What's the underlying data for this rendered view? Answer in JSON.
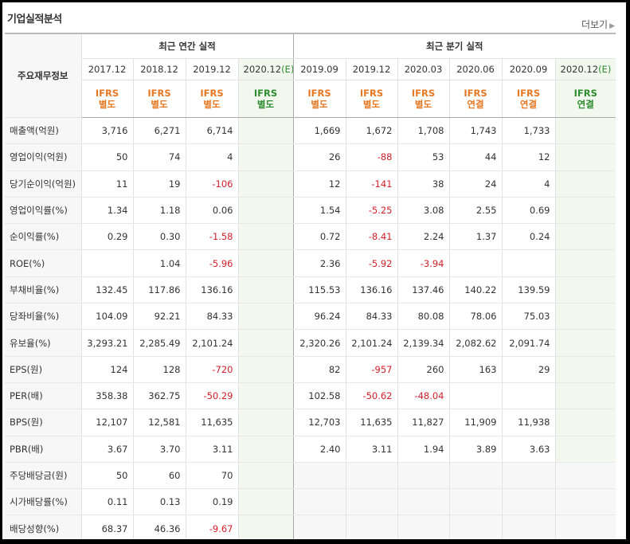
{
  "section_title": "기업실적분석",
  "more_link": "더보기",
  "header": {
    "label": "주요재무정보",
    "annual_group": "최근 연간 실적",
    "quarter_group": "최근 분기 실적",
    "annual_years": [
      "2017.12",
      "2018.12",
      "2019.12",
      "2020.12"
    ],
    "annual_estimate_mark": "(E)",
    "quarter_years": [
      "2019.09",
      "2019.12",
      "2020.03",
      "2020.06",
      "2020.09",
      "2020.12"
    ],
    "quarter_estimate_mark": "(E)",
    "annual_basis": [
      [
        "IFRS",
        "별도"
      ],
      [
        "IFRS",
        "별도"
      ],
      [
        "IFRS",
        "별도"
      ],
      [
        "IFRS",
        "별도"
      ]
    ],
    "quarter_basis": [
      [
        "IFRS",
        "별도"
      ],
      [
        "IFRS",
        "별도"
      ],
      [
        "IFRS",
        "별도"
      ],
      [
        "IFRS",
        "연결"
      ],
      [
        "IFRS",
        "연결"
      ],
      [
        "IFRS",
        "연결"
      ]
    ]
  },
  "rows": [
    {
      "label": "매출액(억원)",
      "annual": [
        "3,716",
        "6,271",
        "6,714",
        ""
      ],
      "quarter": [
        "1,669",
        "1,672",
        "1,708",
        "1,743",
        "1,733",
        ""
      ]
    },
    {
      "label": "영업이익(억원)",
      "annual": [
        "50",
        "74",
        "4",
        ""
      ],
      "quarter": [
        "26",
        "-88",
        "53",
        "44",
        "12",
        ""
      ]
    },
    {
      "label": "당기순이익(억원)",
      "annual": [
        "11",
        "19",
        "-106",
        ""
      ],
      "quarter": [
        "12",
        "-141",
        "38",
        "24",
        "4",
        ""
      ]
    },
    {
      "label": "영업이익률(%)",
      "annual": [
        "1.34",
        "1.18",
        "0.06",
        ""
      ],
      "quarter": [
        "1.54",
        "-5.25",
        "3.08",
        "2.55",
        "0.69",
        ""
      ]
    },
    {
      "label": "순이익률(%)",
      "annual": [
        "0.29",
        "0.30",
        "-1.58",
        ""
      ],
      "quarter": [
        "0.72",
        "-8.41",
        "2.24",
        "1.37",
        "0.24",
        ""
      ]
    },
    {
      "label": "ROE(%)",
      "annual": [
        "",
        "1.04",
        "-5.96",
        ""
      ],
      "quarter": [
        "2.36",
        "-5.92",
        "-3.94",
        "",
        "",
        ""
      ]
    },
    {
      "label": "부채비율(%)",
      "annual": [
        "132.45",
        "117.86",
        "136.16",
        ""
      ],
      "quarter": [
        "115.53",
        "136.16",
        "137.46",
        "140.22",
        "139.59",
        ""
      ]
    },
    {
      "label": "당좌비율(%)",
      "annual": [
        "104.09",
        "92.21",
        "84.33",
        ""
      ],
      "quarter": [
        "96.24",
        "84.33",
        "80.08",
        "78.06",
        "75.03",
        ""
      ]
    },
    {
      "label": "유보율(%)",
      "annual": [
        "3,293.21",
        "2,285.49",
        "2,101.24",
        ""
      ],
      "quarter": [
        "2,320.26",
        "2,101.24",
        "2,139.34",
        "2,082.62",
        "2,091.74",
        ""
      ]
    },
    {
      "label": "EPS(원)",
      "annual": [
        "124",
        "128",
        "-720",
        ""
      ],
      "quarter": [
        "82",
        "-957",
        "260",
        "163",
        "29",
        ""
      ]
    },
    {
      "label": "PER(배)",
      "annual": [
        "358.38",
        "362.75",
        "-50.29",
        ""
      ],
      "quarter": [
        "102.58",
        "-50.62",
        "-48.04",
        "",
        "",
        ""
      ]
    },
    {
      "label": "BPS(원)",
      "annual": [
        "12,107",
        "12,581",
        "11,635",
        ""
      ],
      "quarter": [
        "12,703",
        "11,635",
        "11,827",
        "11,909",
        "11,938",
        ""
      ]
    },
    {
      "label": "PBR(배)",
      "annual": [
        "3.67",
        "3.70",
        "3.11",
        ""
      ],
      "quarter": [
        "2.40",
        "3.11",
        "1.94",
        "3.89",
        "3.63",
        ""
      ]
    },
    {
      "label": "주당배당금(원)",
      "annual": [
        "50",
        "60",
        "70",
        ""
      ],
      "quarter": [
        "",
        "",
        "",
        "",
        "",
        ""
      ]
    },
    {
      "label": "시가배당률(%)",
      "annual": [
        "0.11",
        "0.13",
        "0.19",
        ""
      ],
      "quarter": [
        "",
        "",
        "",
        "",
        "",
        ""
      ]
    },
    {
      "label": "배당성향(%)",
      "annual": [
        "68.37",
        "46.36",
        "-9.67",
        ""
      ],
      "quarter": [
        "",
        "",
        "",
        "",
        "",
        ""
      ]
    }
  ],
  "group_starts": [
    0,
    3,
    6,
    9,
    13
  ],
  "dividend_rows": [
    13,
    14,
    15
  ],
  "colors": {
    "negative": "#d3202a",
    "ifrs": "#e87722",
    "estimate": "#2e8b2e",
    "estimate_bg": "#f2f8ee"
  }
}
